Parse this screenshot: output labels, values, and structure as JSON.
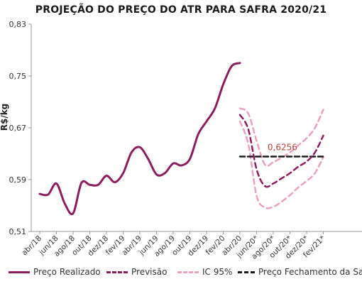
{
  "chart_data": {
    "type": "line",
    "title": "PROJEÇÃO DO PREÇO DO ATR PARA SAFRA 2020/21",
    "ylabel": "R$/kg",
    "xlabel": "",
    "ylim": [
      0.51,
      0.83
    ],
    "yticks": [
      "0,51",
      "0,59",
      "0,67",
      "0,75",
      "0,83"
    ],
    "categories": [
      "abr/18",
      "jun/18",
      "ago/18",
      "out/18",
      "dez/18",
      "fev/19",
      "abr/19",
      "jun/19",
      "ago/19",
      "out/19",
      "dez/19",
      "fev/20",
      "abr/20",
      "jun/20*",
      "ago/20*",
      "out/20*",
      "dez/20*",
      "fev/21*"
    ],
    "series": [
      {
        "name": "Preço Realizado",
        "color": "#8b1e5f",
        "style": "solid",
        "x": [
          0,
          0.5,
          1,
          1.5,
          2,
          2.5,
          3,
          3.5,
          4,
          4.5,
          5,
          5.5,
          6,
          6.5,
          7,
          7.5,
          8,
          8.5,
          9,
          9.5,
          10,
          10.5,
          11,
          11.5,
          12
        ],
        "values": [
          0.568,
          0.567,
          0.584,
          0.553,
          0.538,
          0.585,
          0.582,
          0.582,
          0.596,
          0.586,
          0.6,
          0.632,
          0.64,
          0.622,
          0.598,
          0.6,
          0.615,
          0.612,
          0.622,
          0.66,
          0.68,
          0.7,
          0.737,
          0.765,
          0.77
        ]
      },
      {
        "name": "Previsão",
        "color": "#8b1e5f",
        "style": "dashed",
        "x": [
          12.0,
          12.5,
          13.0,
          13.5,
          14.0,
          14.5,
          15.0,
          15.5,
          16.0,
          16.5,
          17.0
        ],
        "values": [
          0.69,
          0.668,
          0.606,
          0.58,
          0.584,
          0.592,
          0.6,
          0.61,
          0.618,
          0.632,
          0.658
        ]
      },
      {
        "name": "IC 95%",
        "color": "#e6a2c2",
        "style": "dashed",
        "x": [
          12.0,
          12.5,
          13.0,
          13.5,
          14.0,
          14.5,
          15.0,
          15.5,
          16.0,
          16.5,
          17.0
        ],
        "values": [
          0.7,
          0.692,
          0.65,
          0.613,
          0.617,
          0.624,
          0.632,
          0.643,
          0.654,
          0.67,
          0.698
        ]
      },
      {
        "name": "IC 95%",
        "color": "#e6a2c2",
        "style": "dashed",
        "x": [
          12.0,
          12.5,
          13.0,
          13.5,
          14.0,
          14.5,
          15.0,
          15.5,
          16.0,
          16.5,
          17.0
        ],
        "values": [
          0.68,
          0.645,
          0.565,
          0.547,
          0.548,
          0.556,
          0.566,
          0.578,
          0.588,
          0.6,
          0.625
        ]
      },
      {
        "name": "Preço Fechamento da Safra",
        "color": "#1a1a1a",
        "style": "dashed",
        "x": [
          12.0,
          17.0
        ],
        "values": [
          0.6256,
          0.6256
        ]
      }
    ],
    "annotations": [
      {
        "text": "0,6256",
        "x": 14.55,
        "y": 0.6256,
        "color": "#b5413a"
      }
    ],
    "legend": [
      {
        "label": "Preço Realizado",
        "color": "#8b1e5f",
        "style": "solid"
      },
      {
        "label": "Previsão",
        "color": "#8b1e5f",
        "style": "dashed"
      },
      {
        "label": "IC 95%",
        "color": "#e6a2c2",
        "style": "dashed"
      },
      {
        "label": "Preço Fechamento da Safra",
        "color": "#1a1a1a",
        "style": "dashed"
      }
    ],
    "legend_position": "bottom",
    "grid": false
  }
}
